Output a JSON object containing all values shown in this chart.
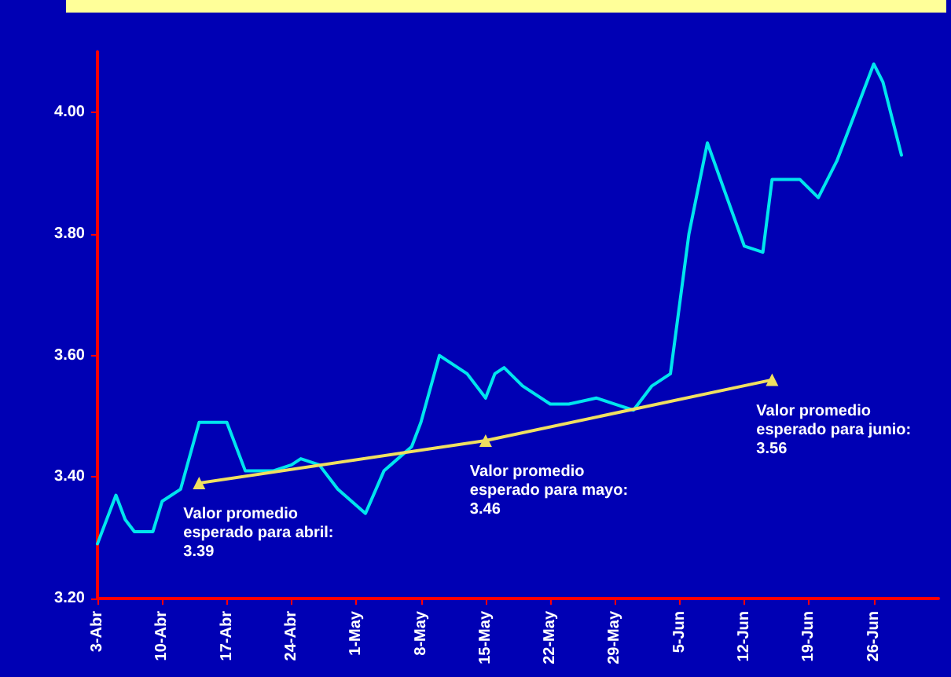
{
  "chart_data": {
    "type": "line",
    "series": [
      {
        "color": "#00e5ee",
        "marker": "none",
        "x": [
          "--04-03",
          "--04-05",
          "--04-06",
          "--04-07",
          "--04-09",
          "--04-10",
          "--04-12",
          "--04-14",
          "--04-17",
          "--04-19",
          "--04-22",
          "--04-24",
          "--04-25",
          "--04-27",
          "--04-29",
          "--05-02",
          "--05-04",
          "--05-07",
          "--05-08",
          "--05-10",
          "--05-11",
          "--05-13",
          "--05-15",
          "--05-16",
          "--05-17",
          "--05-19",
          "--05-22",
          "--05-24",
          "--05-27",
          "--05-29",
          "--05-31",
          "--06-02",
          "--06-04",
          "--06-06",
          "--06-08",
          "--06-12",
          "--06-14",
          "--06-15",
          "--06-18",
          "--06-20",
          "--06-22",
          "--06-26",
          "--06-27",
          "--06-29"
        ],
        "values": [
          3.29,
          3.37,
          3.33,
          3.31,
          3.31,
          3.36,
          3.38,
          3.49,
          3.49,
          3.41,
          3.41,
          3.42,
          3.43,
          3.42,
          3.38,
          3.34,
          3.41,
          3.45,
          3.49,
          3.6,
          3.59,
          3.57,
          3.53,
          3.57,
          3.58,
          3.55,
          3.52,
          3.52,
          3.53,
          3.52,
          3.51,
          3.55,
          3.57,
          3.8,
          3.95,
          3.78,
          3.77,
          3.89,
          3.89,
          3.86,
          3.92,
          4.08,
          4.05,
          3.93
        ]
      },
      {
        "color": "#f0e060",
        "marker": "triangle",
        "x": [
          "--04-14",
          "--05-15",
          "--06-15"
        ],
        "values": [
          3.39,
          3.46,
          3.56
        ]
      }
    ],
    "xlim": [
      "--04-03",
      "--07-03"
    ],
    "xticks": [
      {
        "value": "--04-03",
        "label": "3-Abr"
      },
      {
        "value": "--04-10",
        "label": "10-Abr"
      },
      {
        "value": "--04-17",
        "label": "17-Abr"
      },
      {
        "value": "--04-24",
        "label": "24-Abr"
      },
      {
        "value": "--05-01",
        "label": "1-May"
      },
      {
        "value": "--05-08",
        "label": "8-May"
      },
      {
        "value": "--05-15",
        "label": "15-May"
      },
      {
        "value": "--05-22",
        "label": "22-May"
      },
      {
        "value": "--05-29",
        "label": "29-May"
      },
      {
        "value": "--06-05",
        "label": "5-Jun"
      },
      {
        "value": "--06-12",
        "label": "12-Jun"
      },
      {
        "value": "--06-19",
        "label": "19-Jun"
      },
      {
        "value": "--06-26",
        "label": "26-Jun"
      }
    ],
    "ylim": [
      3.2,
      4.1
    ],
    "yticks": [
      {
        "value": 3.2,
        "label": "3.20"
      },
      {
        "value": 3.4,
        "label": "3.40"
      },
      {
        "value": 3.6,
        "label": "3.60"
      },
      {
        "value": 3.8,
        "label": "3.80"
      },
      {
        "value": 4.0,
        "label": "4.00"
      }
    ],
    "annotations": [
      {
        "text": "Valor promedio esperado para abril: 3.39",
        "x": "--04-14",
        "y": 3.39
      },
      {
        "text": "Valor promedio esperado para mayo: 3.46",
        "x": "--05-15",
        "y": 3.46
      },
      {
        "text": "Valor promedio esperado para junio: 3.56",
        "x": "--06-15",
        "y": 3.56
      }
    ],
    "grid": false
  }
}
